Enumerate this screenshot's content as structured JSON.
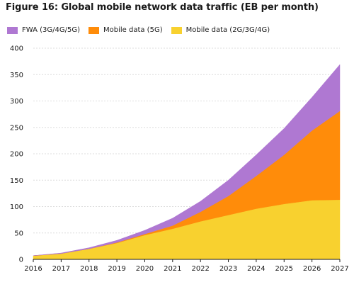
{
  "chart_data": {
    "type": "area",
    "stacked": true,
    "title": "Figure 16: Global mobile network data traffic (EB per month)",
    "x": [
      "2016",
      "2017",
      "2018",
      "2019",
      "2020",
      "2021",
      "2022",
      "2023",
      "2024",
      "2025",
      "2026",
      "2027"
    ],
    "series": [
      {
        "name": "Mobile data (2G/3G/4G)",
        "color": "#f8d12f",
        "values": [
          7,
          11,
          20,
          31,
          46,
          58,
          72,
          84,
          96,
          105,
          112,
          113
        ]
      },
      {
        "name": "Mobile data (5G)",
        "color": "#ff8c0a",
        "values": [
          0,
          0,
          0,
          1,
          2,
          6,
          18,
          36,
          62,
          93,
          132,
          168
        ]
      },
      {
        "name": "FWA (3G/4G/5G)",
        "color": "#af78d2",
        "values": [
          0,
          1,
          2,
          4,
          7,
          14,
          20,
          30,
          40,
          50,
          63,
          88
        ]
      }
    ],
    "legend_order": [
      2,
      1,
      0
    ],
    "yticks": [
      "0",
      "50",
      "100",
      "150",
      "200",
      "250",
      "300",
      "350",
      "400"
    ],
    "ylim": [
      0,
      400
    ],
    "grid": "horizontal",
    "legend_position": "top-left"
  }
}
